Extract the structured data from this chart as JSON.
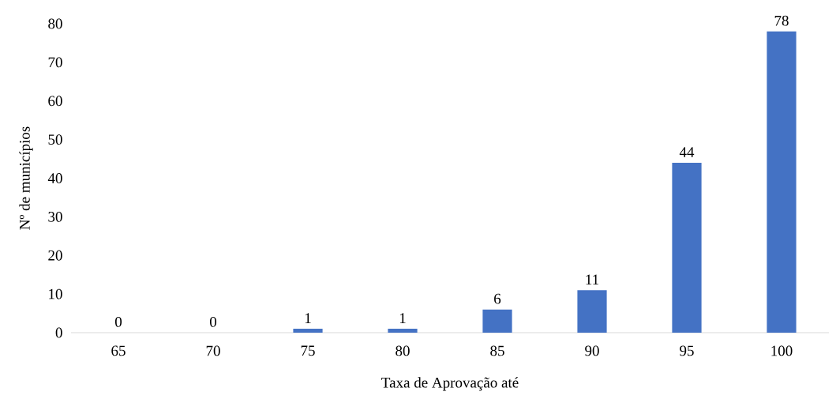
{
  "chart_data": {
    "type": "bar",
    "xlabel": "Taxa de Aprovação até",
    "ylabel": "Nº de municípios",
    "categories": [
      "65",
      "70",
      "75",
      "80",
      "85",
      "90",
      "95",
      "100"
    ],
    "values": [
      0,
      0,
      1,
      1,
      6,
      11,
      44,
      78
    ],
    "color": "#4472c4",
    "ylim": [
      0,
      80
    ],
    "yticks": [
      0,
      10,
      20,
      30,
      40,
      50,
      60,
      70,
      80
    ],
    "data_labels": true,
    "grid": false
  }
}
